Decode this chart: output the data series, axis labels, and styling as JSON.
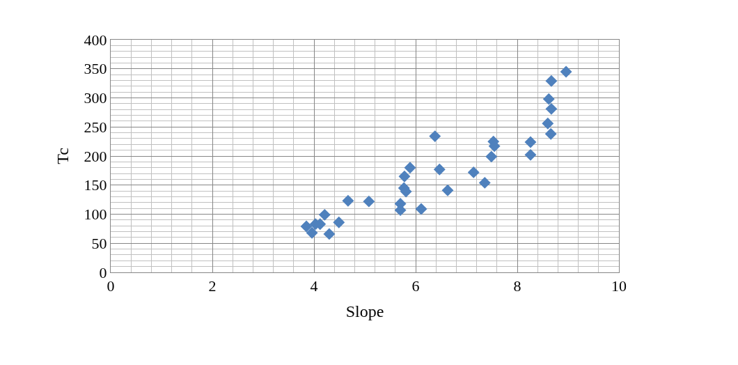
{
  "chart_data": {
    "type": "scatter",
    "xlabel": "Slope",
    "ylabel": "Tc",
    "x": [
      3.85,
      3.96,
      4.03,
      4.12,
      4.21,
      4.3,
      4.49,
      4.67,
      5.08,
      5.7,
      5.7,
      6.11,
      5.77,
      5.81,
      6.38,
      5.89,
      5.78,
      6.47,
      6.63,
      7.14,
      7.36,
      7.53,
      7.55,
      7.49,
      8.26,
      8.26,
      8.96,
      8.67,
      8.62,
      8.67,
      8.6,
      8.66
    ],
    "values": [
      79,
      68,
      83,
      83,
      99,
      66,
      86,
      123,
      122,
      118,
      107,
      109,
      145,
      139,
      234,
      180,
      165,
      177,
      141,
      172,
      154,
      225,
      217,
      199,
      224,
      202,
      345,
      329,
      298,
      281,
      256,
      238
    ],
    "color": "#4f81bd",
    "marker": "diamond",
    "grid": true,
    "legend": false,
    "xlim": [
      0,
      10
    ],
    "xticks": [
      0,
      2,
      4,
      6,
      8,
      10
    ],
    "ylim": [
      0,
      400
    ],
    "yticks": [
      0,
      50,
      100,
      150,
      200,
      250,
      300,
      350,
      400
    ]
  }
}
